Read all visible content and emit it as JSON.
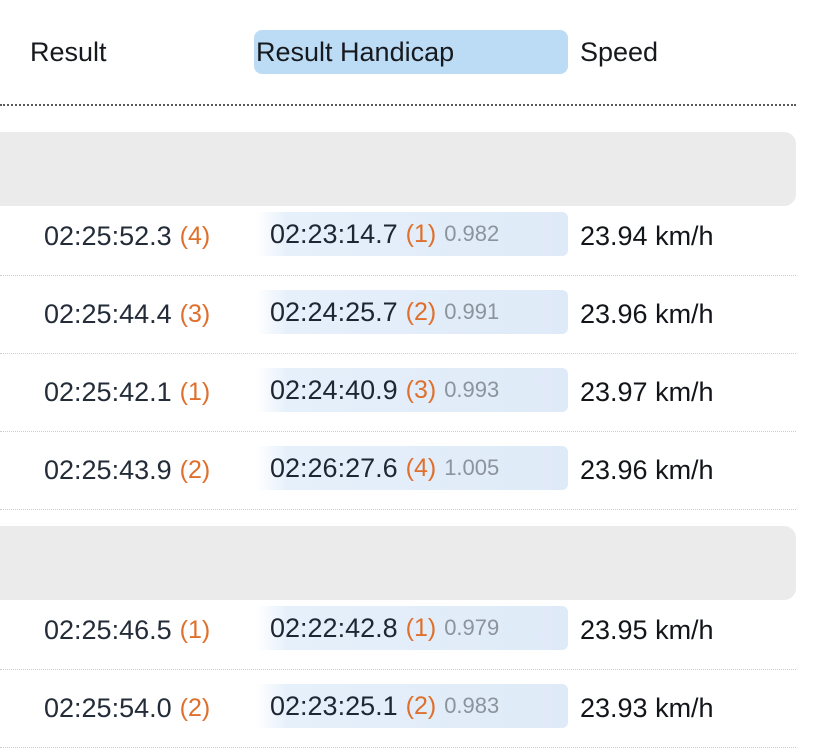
{
  "header": {
    "result_label": "Result",
    "handicap_label": "Result Handicap",
    "speed_label": "Speed"
  },
  "groups": [
    {
      "rows": [
        {
          "result": "02:25:52.3",
          "result_rank": "(4)",
          "handicap": "02:23:14.7",
          "handicap_rank": "(1)",
          "factor": "0.982",
          "speed": "23.94 km/h"
        },
        {
          "result": "02:25:44.4",
          "result_rank": "(3)",
          "handicap": "02:24:25.7",
          "handicap_rank": "(2)",
          "factor": "0.991",
          "speed": "23.96 km/h"
        },
        {
          "result": "02:25:42.1",
          "result_rank": "(1)",
          "handicap": "02:24:40.9",
          "handicap_rank": "(3)",
          "factor": "0.993",
          "speed": "23.97 km/h"
        },
        {
          "result": "02:25:43.9",
          "result_rank": "(2)",
          "handicap": "02:26:27.6",
          "handicap_rank": "(4)",
          "factor": "1.005",
          "speed": "23.96 km/h"
        }
      ]
    },
    {
      "rows": [
        {
          "result": "02:25:46.5",
          "result_rank": "(1)",
          "handicap": "02:22:42.8",
          "handicap_rank": "(1)",
          "factor": "0.979",
          "speed": "23.95 km/h"
        },
        {
          "result": "02:25:54.0",
          "result_rank": "(2)",
          "handicap": "02:23:25.1",
          "handicap_rank": "(2)",
          "factor": "0.983",
          "speed": "23.93 km/h"
        }
      ]
    }
  ],
  "colors": {
    "rank": "#df6f2c",
    "handicap_header_bg": "#bcdcf5",
    "group_header_bg": "#ebebeb",
    "factor": "#8b939c"
  }
}
